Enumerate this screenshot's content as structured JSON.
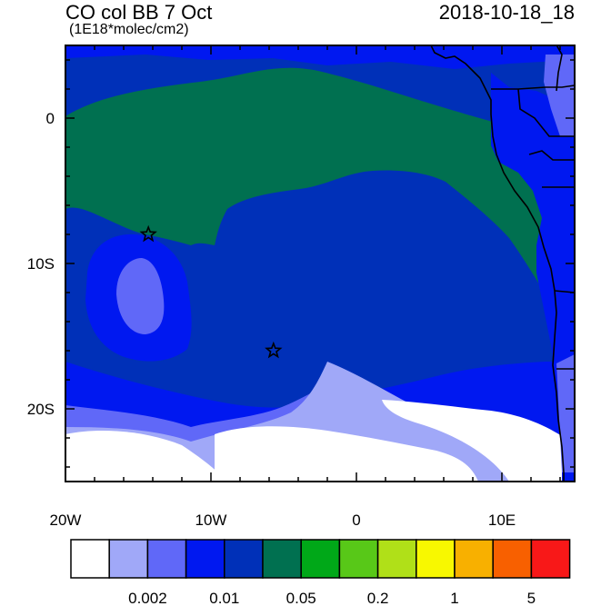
{
  "header": {
    "title": "CO col BB 7 Oct",
    "units": "(1E18*molec/cm2)",
    "datetime": "2018-10-18_18"
  },
  "map": {
    "lon_range": [
      -20,
      15
    ],
    "lat_range": [
      -25,
      5
    ],
    "lon_tick_labels": [
      {
        "lon": -20,
        "label": "20W"
      },
      {
        "lon": -10,
        "label": "10W"
      },
      {
        "lon": 0,
        "label": "0"
      },
      {
        "lon": 10,
        "label": "10E"
      }
    ],
    "lat_tick_labels": [
      {
        "lat": 0,
        "label": "0"
      },
      {
        "lat": -10,
        "label": "10S"
      },
      {
        "lat": -20,
        "label": "20S"
      }
    ],
    "markers": [
      {
        "name": "star-marker-1",
        "lon": -14.3,
        "lat": -8.0
      },
      {
        "name": "star-marker-2",
        "lon": -5.7,
        "lat": -16.0
      }
    ]
  },
  "colorbar": {
    "colors": [
      "#ffffff",
      "#a0a8f8",
      "#6068f8",
      "#0018f0",
      "#0030b8",
      "#007050",
      "#00a818",
      "#58c818",
      "#b0e018",
      "#f8f800",
      "#f8b000",
      "#f86000",
      "#f81818"
    ],
    "labels": [
      {
        "after_box": 2,
        "text": "0.002"
      },
      {
        "after_box": 4,
        "text": "0.01"
      },
      {
        "after_box": 6,
        "text": "0.05"
      },
      {
        "after_box": 8,
        "text": "0.2"
      },
      {
        "after_box": 10,
        "text": "1"
      },
      {
        "after_box": 12,
        "text": "5"
      }
    ]
  }
}
